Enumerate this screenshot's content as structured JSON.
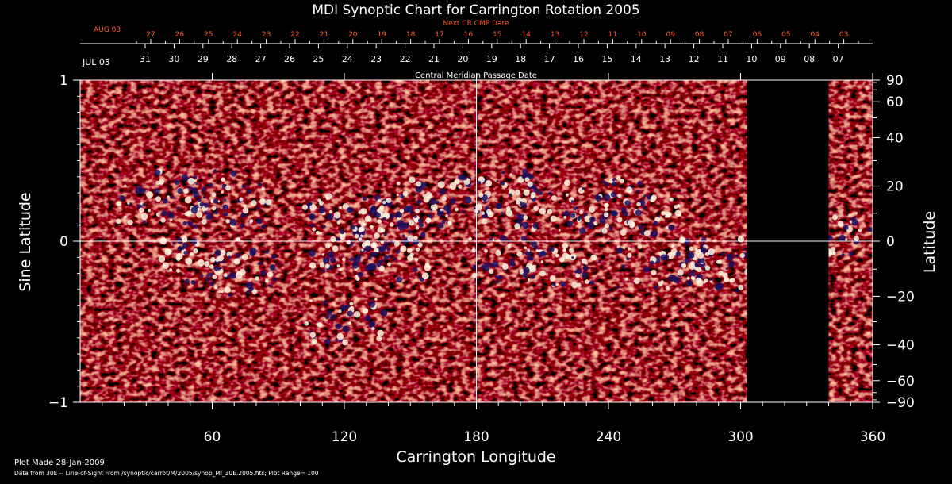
{
  "chart_data": {
    "type": "heatmap",
    "title": "MDI Synoptic Chart for Carrington Rotation 2005",
    "xlabel": "Carrington Longitude",
    "ylabel": "Sine Latitude",
    "ylabel_right": "Latitude",
    "xlim": [
      0,
      360
    ],
    "ylim": [
      -1,
      1
    ],
    "x_ticks": [
      60,
      120,
      180,
      240,
      300,
      360
    ],
    "y_ticks_left": [
      1,
      0,
      -1
    ],
    "y_ticks_left_labels": [
      "1",
      "0",
      "−1"
    ],
    "lat_ticks_right": [
      90,
      60,
      40,
      20,
      0,
      -20,
      -40,
      -60,
      -90
    ],
    "lat_ticks_right_labels": [
      "90",
      "60",
      "40",
      "20",
      "0",
      "−20",
      "−40",
      "−60",
      "−90"
    ],
    "top_axis_title": "Next CR CMP Date",
    "top_axis_month": "AUG 03",
    "top_axis_dates": [
      "27",
      "26",
      "25",
      "24",
      "23",
      "22",
      "21",
      "20",
      "19",
      "18",
      "17",
      "16",
      "15",
      "14",
      "13",
      "12",
      "11",
      "10",
      "09",
      "08",
      "07",
      "06",
      "05",
      "04",
      "03"
    ],
    "bottom_axis_title": "Central Meridian Passage Date",
    "bottom_axis_month": "JUL 03",
    "bottom_axis_dates": [
      "31",
      "30",
      "29",
      "28",
      "27",
      "26",
      "25",
      "24",
      "23",
      "22",
      "21",
      "20",
      "19",
      "18",
      "17",
      "16",
      "15",
      "14",
      "13",
      "12",
      "11",
      "10",
      "09",
      "08",
      "07"
    ],
    "data_gaps_longitude": [
      [
        303,
        340
      ]
    ],
    "guide_lines": {
      "longitude": 180,
      "sine_latitude": 0
    },
    "colors": {
      "background": "#ff6a1a",
      "positive_polarity": "#fff6e0",
      "negative_polarity": "#1a1060",
      "top_axis_text": "#ff5a28",
      "text": "#ffffff"
    }
  },
  "footer": {
    "plot_made": "Plot Made 28-Jan-2009",
    "data_source": "Data from 30E -- Line-of-Sight From /synoptic/carrot/M/2005/synop_Ml_30E.2005.fits; Plot Range=  100"
  }
}
